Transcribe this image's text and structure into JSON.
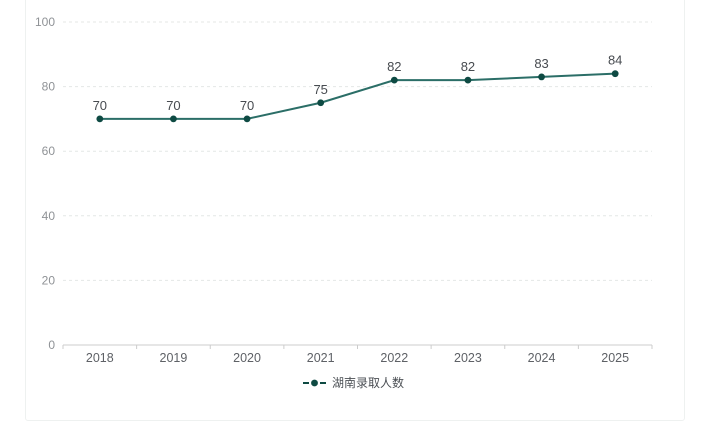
{
  "chart_data": {
    "type": "line",
    "categories": [
      "2018",
      "2019",
      "2020",
      "2021",
      "2022",
      "2023",
      "2024",
      "2025"
    ],
    "series": [
      {
        "name": "湖南录取人数",
        "values": [
          70,
          70,
          70,
          75,
          82,
          82,
          83,
          84
        ]
      }
    ],
    "title": "",
    "xlabel": "",
    "ylabel": "",
    "ylim": [
      0,
      100
    ],
    "y_ticks": [
      0,
      20,
      40,
      60,
      80,
      100
    ],
    "grid": "dashed horizontal",
    "legend_position": "bottom",
    "data_labels_shown": true,
    "colors": {
      "line": "#2b6e67",
      "marker": "#0e4a43",
      "grid_line": "#e4e7e6",
      "axis_line": "#cccccc",
      "y_tick_label": "#8f9296",
      "x_tick_label": "#5e6166",
      "data_label": "#474b50",
      "legend_text": "#4b4f54",
      "card_border": "#eef1f0",
      "background": "#ffffff"
    }
  },
  "legend": {
    "label": "湖南录取人数"
  }
}
